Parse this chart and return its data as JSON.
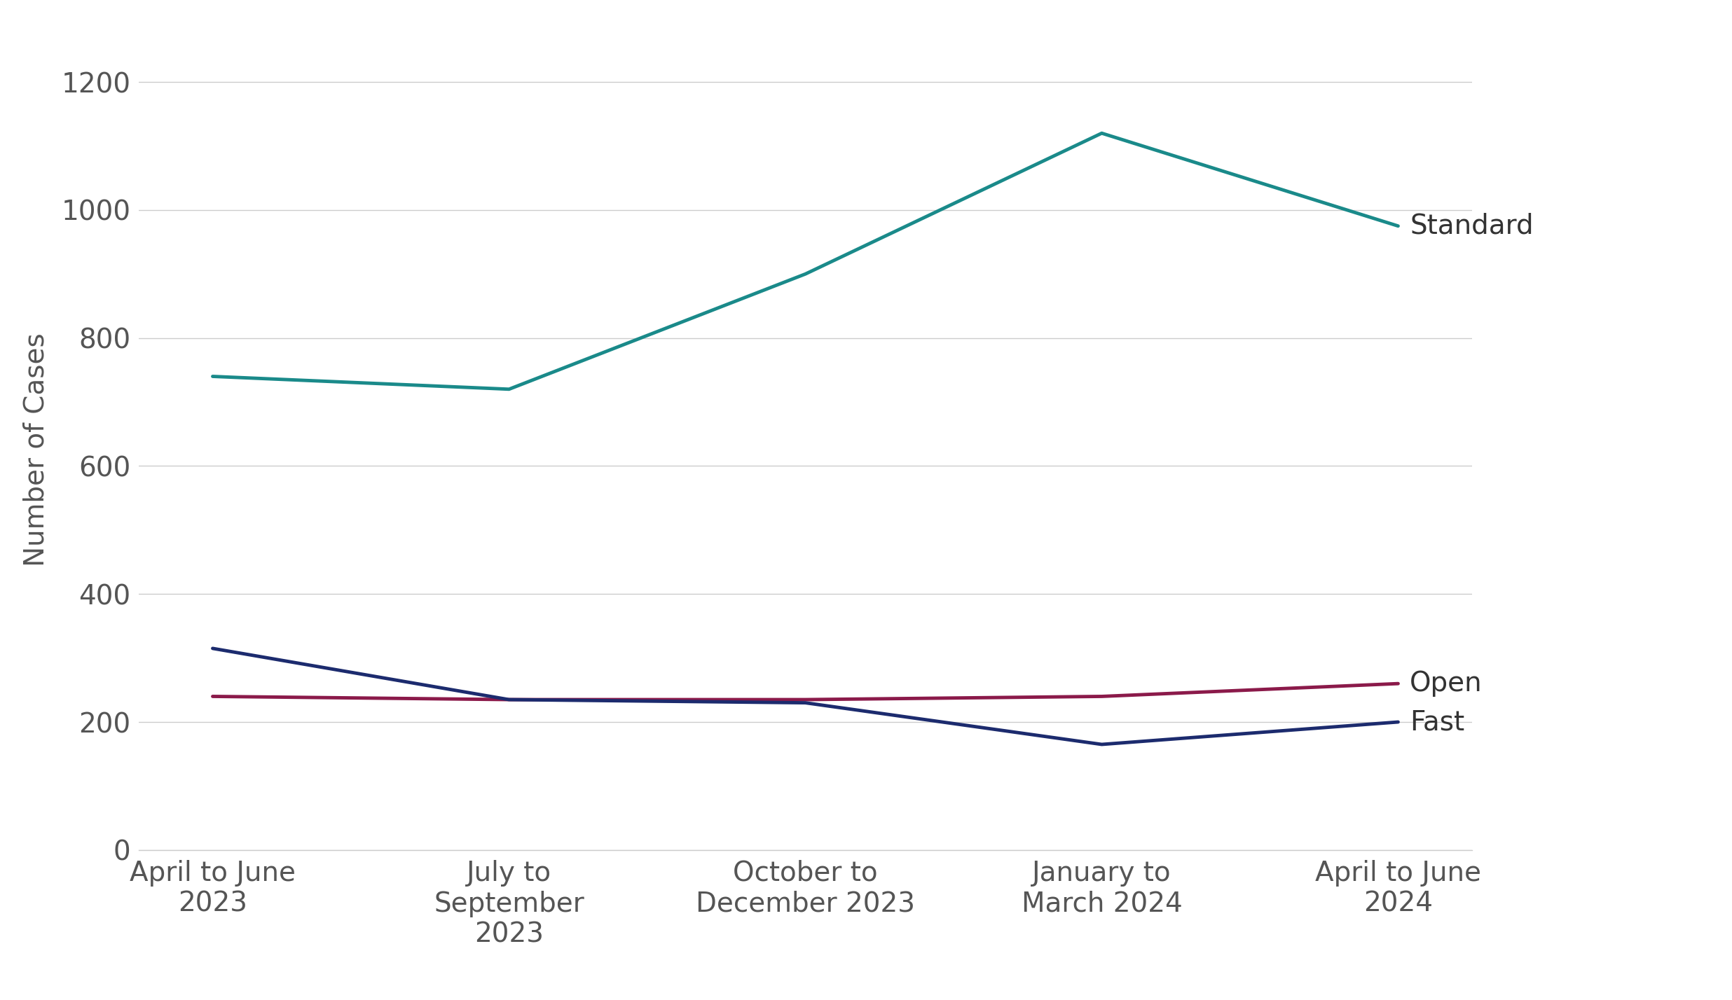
{
  "x_labels": [
    "April to June\n2023",
    "July to\nSeptember\n2023",
    "October to\nDecember 2023",
    "January to\nMarch 2024",
    "April to June\n2024"
  ],
  "series_order": [
    "Standard",
    "Open",
    "Fast"
  ],
  "series": {
    "Standard": {
      "values": [
        740,
        720,
        900,
        1120,
        975
      ],
      "color": "#1a8a8a",
      "linewidth": 3.5
    },
    "Open": {
      "values": [
        240,
        235,
        235,
        240,
        260
      ],
      "color": "#8B1A4A",
      "linewidth": 3.5
    },
    "Fast": {
      "values": [
        315,
        235,
        230,
        165,
        200
      ],
      "color": "#1C2B6E",
      "linewidth": 3.5
    }
  },
  "ylabel": "Number of Cases",
  "ylim": [
    0,
    1250
  ],
  "yticks": [
    0,
    200,
    400,
    600,
    800,
    1000,
    1200
  ],
  "background_color": "#ffffff",
  "grid_color": "#cccccc",
  "tick_color": "#555555",
  "label_fontsize": 28,
  "tick_fontsize": 28,
  "annotation_fontsize": 28,
  "ylabel_fontsize": 28
}
